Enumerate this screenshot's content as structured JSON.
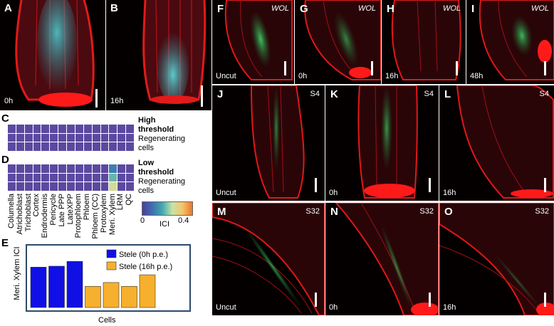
{
  "panels": {
    "A": {
      "label": "A",
      "time": "0h"
    },
    "B": {
      "label": "B",
      "time": "16h"
    },
    "C": {
      "label": "C"
    },
    "D": {
      "label": "D"
    },
    "E": {
      "label": "E"
    },
    "F": {
      "label": "F",
      "tag": "WOL",
      "cond": "Uncut"
    },
    "G": {
      "label": "G",
      "tag": "WOL",
      "cond": "0h"
    },
    "H": {
      "label": "H",
      "tag": "WOL",
      "cond": "16h"
    },
    "I": {
      "label": "I",
      "tag": "WOL",
      "cond": "48h"
    },
    "J": {
      "label": "J",
      "tag": "S4",
      "cond": "Uncut"
    },
    "K": {
      "label": "K",
      "tag": "S4",
      "cond": "0h"
    },
    "L": {
      "label": "L",
      "tag": "S4",
      "cond": "16h"
    },
    "M": {
      "label": "M",
      "tag": "S32",
      "cond": "Uncut"
    },
    "N": {
      "label": "N",
      "tag": "S32",
      "cond": "0h"
    },
    "O": {
      "label": "O",
      "tag": "S32",
      "cond": "16h"
    }
  },
  "heatmap": {
    "high_threshold": {
      "line1": "High",
      "line2": "threshold",
      "line3": "Regenerating",
      "line4": "cells"
    },
    "low_threshold": {
      "line1": "Low",
      "line2": "threshold",
      "line3": "Regenerating",
      "line4": "cells"
    },
    "cell_types": [
      "Columella",
      "Atrichoblast",
      "Trichoblast",
      "Cortex",
      "Endrodermis",
      "Pericycle",
      "Late PPP",
      "LateXPP",
      "Protophloem",
      "Phloem",
      "Phloem (CC)",
      "Protoxylem",
      "Meri. Xylem",
      "LRM",
      "QC"
    ],
    "colorbar": {
      "min": "0",
      "max": "0.4",
      "label": "ICI",
      "colors": [
        "#4b3e9a",
        "#3f6fb0",
        "#43a7b0",
        "#c7e3a6",
        "#f6c46a",
        "#e8772e"
      ]
    },
    "base_color": "#5b49a0",
    "low_highlight": {
      "column": "Meri. Xylem",
      "values": [
        0.1,
        0.18,
        0.26
      ]
    }
  },
  "chart_data": {
    "type": "bar",
    "title": "",
    "xlabel": "Cells",
    "ylabel": "Meri. Xylem ICI",
    "ylim": [
      0,
      0.6
    ],
    "series": [
      {
        "name": "Stele (0h p.e.)",
        "color": "#1010e6",
        "values": [
          0.42,
          0.43,
          0.48
        ]
      },
      {
        "name": "Stele (16h p.e.)",
        "color": "#f7b02d",
        "values": [
          0.22,
          0.26,
          0.22,
          0.34
        ]
      }
    ]
  }
}
